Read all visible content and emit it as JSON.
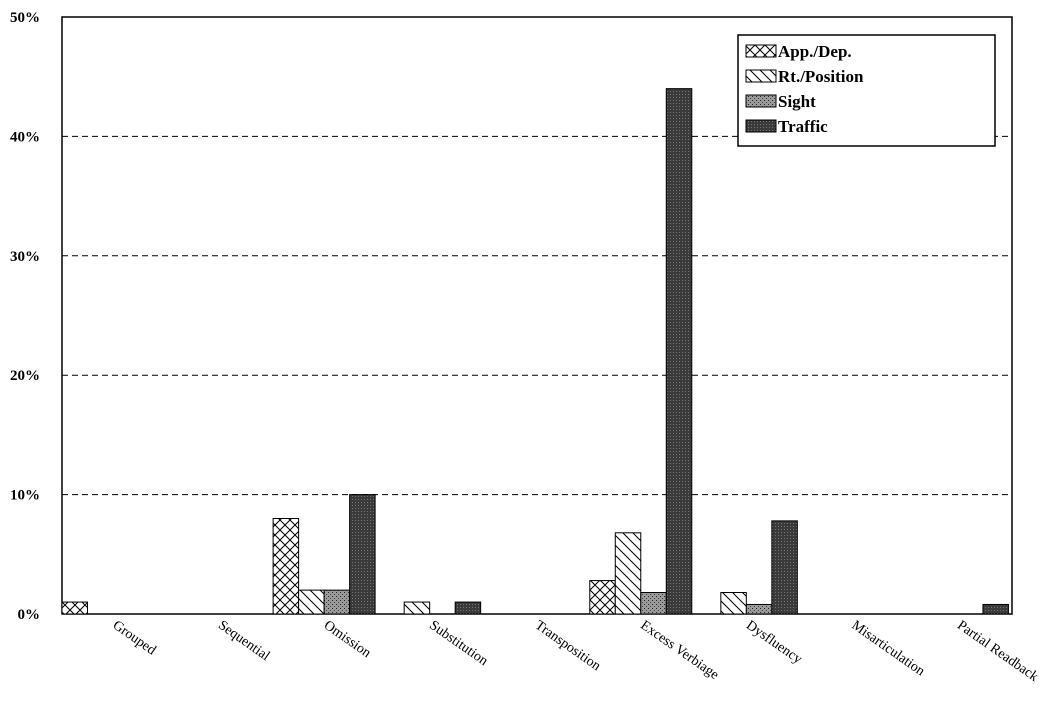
{
  "chart_data": {
    "type": "bar",
    "title": "",
    "xlabel": "",
    "ylabel": "",
    "ylim": [
      0,
      50
    ],
    "y_ticks": [
      "0%",
      "10%",
      "20%",
      "30%",
      "40%",
      "50%"
    ],
    "grid": "horizontal dashed",
    "legend_position": "top-right",
    "categories": [
      "Grouped",
      "Sequential",
      "Omission",
      "Substitution",
      "Transposition",
      "Excess Verbiage",
      "Dysfluency",
      "Misarticulation",
      "Partial Readback"
    ],
    "series": [
      {
        "name": "App./Dep.",
        "pattern": "crosshatch",
        "values": [
          1,
          0,
          8,
          0,
          0,
          2.8,
          0,
          0,
          0
        ]
      },
      {
        "name": "Rt./Position",
        "pattern": "diagonal",
        "values": [
          0,
          0,
          2,
          1,
          0,
          6.8,
          1.8,
          0,
          0
        ]
      },
      {
        "name": "Sight",
        "pattern": "dotted-gray",
        "values": [
          0,
          0,
          2,
          0,
          0,
          1.8,
          0.8,
          0,
          0
        ]
      },
      {
        "name": "Traffic",
        "pattern": "dark-dotted",
        "values": [
          0,
          0,
          10,
          1,
          0,
          44,
          7.8,
          0,
          0.8
        ]
      }
    ]
  }
}
